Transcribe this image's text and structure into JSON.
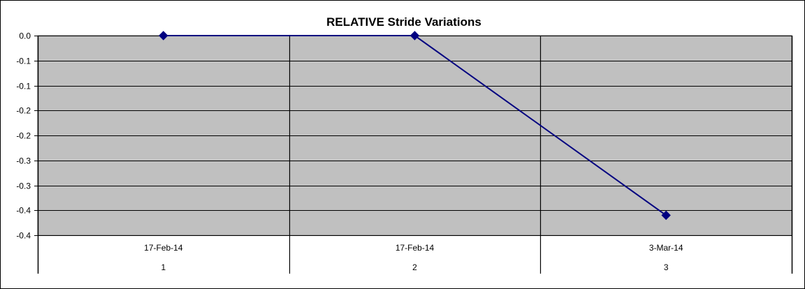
{
  "chart_data": {
    "type": "line",
    "title": "RELATIVE Stride Variations",
    "categories": [
      "1",
      "2",
      "3"
    ],
    "category_dates": [
      "17-Feb-14",
      "17-Feb-14",
      "3-Mar-14"
    ],
    "series": [
      {
        "values": [
          0.0,
          0.0,
          -0.36
        ],
        "color": "#000080"
      }
    ],
    "yticks": [
      0.0,
      -0.05,
      -0.1,
      -0.15,
      -0.2,
      -0.25,
      -0.3,
      -0.35,
      -0.4
    ],
    "ytick_labels": [
      "0.0",
      "-0.1",
      "-0.1",
      "-0.2",
      "-0.2",
      "-0.3",
      "-0.3",
      "-0.4",
      "-0.4"
    ],
    "ylim": [
      -0.4,
      0.0
    ],
    "grid": true,
    "plot_background": "#c0c0c0",
    "marker": "diamond"
  }
}
